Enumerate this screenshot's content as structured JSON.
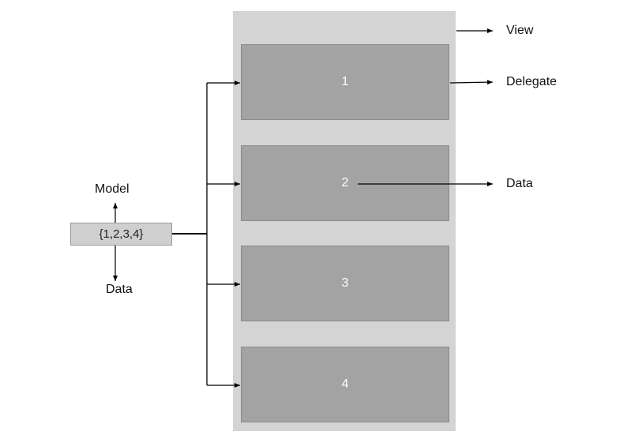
{
  "view": {
    "label": "View"
  },
  "delegates": [
    {
      "label": "1"
    },
    {
      "label": "2"
    },
    {
      "label": "3"
    },
    {
      "label": "4"
    }
  ],
  "model": {
    "value": "{1,2,3,4}",
    "label": "Model",
    "data_label": "Data"
  },
  "annotations": {
    "view": "View",
    "delegate": "Delegate",
    "data": "Data"
  }
}
